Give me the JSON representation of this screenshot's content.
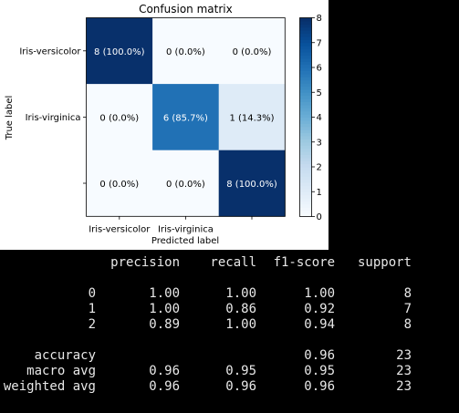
{
  "chart_data": {
    "type": "heatmap",
    "title": "Confusion matrix",
    "xlabel": "Predicted label",
    "ylabel": "True label",
    "x_tick_labels": [
      "Iris-versicolor",
      "Iris-virginica",
      ""
    ],
    "y_tick_labels": [
      "Iris-versicolor",
      "Iris-virginica",
      ""
    ],
    "matrix": [
      [
        8,
        0,
        0
      ],
      [
        0,
        6,
        1
      ],
      [
        0,
        0,
        8
      ]
    ],
    "cell_labels": [
      [
        "8 (100.0%)",
        "0 (0.0%)",
        "0 (0.0%)"
      ],
      [
        "0 (0.0%)",
        "6 (85.7%)",
        "1 (14.3%)"
      ],
      [
        "0 (0.0%)",
        "0 (0.0%)",
        "8 (100.0%)"
      ]
    ],
    "colormap": "Blues",
    "colorbar": {
      "min": 0,
      "max": 8,
      "ticks": [
        "0",
        "1",
        "2",
        "3",
        "4",
        "5",
        "6",
        "7",
        "8"
      ]
    }
  },
  "report": {
    "headers": [
      "precision",
      "recall",
      "f1-score",
      "support"
    ],
    "rows": [
      {
        "label": "0",
        "precision": "1.00",
        "recall": "1.00",
        "f1": "1.00",
        "support": "8"
      },
      {
        "label": "1",
        "precision": "1.00",
        "recall": "0.86",
        "f1": "0.92",
        "support": "7"
      },
      {
        "label": "2",
        "precision": "0.89",
        "recall": "1.00",
        "f1": "0.94",
        "support": "8"
      }
    ],
    "summary": [
      {
        "label": "accuracy",
        "precision": "",
        "recall": "",
        "f1": "0.96",
        "support": "23"
      },
      {
        "label": "macro avg",
        "precision": "0.96",
        "recall": "0.95",
        "f1": "0.95",
        "support": "23"
      },
      {
        "label": "weighted avg",
        "precision": "0.96",
        "recall": "0.96",
        "f1": "0.96",
        "support": "23"
      }
    ]
  }
}
